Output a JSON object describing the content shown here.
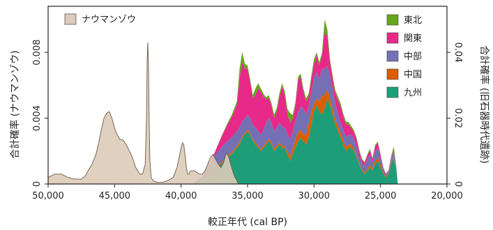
{
  "chart_data": {
    "type": "area",
    "xlabel": "較正年代 (cal BP)",
    "ylabel_left": "合計確率 (ナウマンゾウ)",
    "ylabel_right": "合計確率 (旧石器時代遺跡)",
    "xlim": [
      50000,
      20000
    ],
    "ylim_left": [
      0,
      0.0108
    ],
    "ylim_right": [
      0,
      0.054
    ],
    "x_ticks": [
      50000,
      45000,
      40000,
      35000,
      30000,
      25000,
      20000
    ],
    "x_tick_labels": [
      "50,000",
      "45,000",
      "40,000",
      "35,000",
      "30,000",
      "25,000",
      "20,000"
    ],
    "y_ticks_left": [
      0,
      0.004,
      0.008
    ],
    "y_tick_labels_left": [
      "0",
      "0.004",
      "0.008"
    ],
    "y_ticks_right": [
      0,
      0.02,
      0.04
    ],
    "y_tick_labels_right": [
      "0",
      "0.02",
      "0.04"
    ],
    "legend_left_placement": "top-left",
    "legend_right_placement": "top-right",
    "naumann": {
      "name": "ナウマンゾウ",
      "color": "#dccbb8",
      "x": [
        50000,
        49500,
        49000,
        48500,
        48000,
        47500,
        47200,
        47000,
        46700,
        46400,
        46200,
        46000,
        45800,
        45600,
        45400,
        45200,
        45000,
        44800,
        44600,
        44400,
        44200,
        44000,
        43700,
        43400,
        43100,
        42900,
        42700,
        42600,
        42550,
        42500,
        42450,
        42400,
        42350,
        42250,
        42100,
        41800,
        41400,
        41000,
        40600,
        40300,
        40000,
        39900,
        39800,
        39700,
        39600,
        39500,
        39400,
        39300,
        39200,
        39000,
        38800,
        38600,
        38400,
        38200,
        38000,
        37800,
        37600,
        37400,
        37200,
        37000,
        36800,
        36600,
        36400,
        36200,
        36000,
        35800,
        35700
      ],
      "values": [
        0.0004,
        0.0006,
        0.0006,
        0.0004,
        0.0003,
        0.0003,
        0.0005,
        0.0008,
        0.0012,
        0.0018,
        0.0025,
        0.0033,
        0.004,
        0.0043,
        0.0044,
        0.004,
        0.0034,
        0.003,
        0.0027,
        0.0027,
        0.0025,
        0.0022,
        0.0017,
        0.001,
        0.0006,
        0.0006,
        0.0012,
        0.004,
        0.0075,
        0.0086,
        0.007,
        0.004,
        0.0015,
        0.0004,
        0.0002,
        0.0001,
        0.0001,
        0.0002,
        0.0004,
        0.001,
        0.0022,
        0.0025,
        0.0024,
        0.0018,
        0.001,
        0.0006,
        0.0006,
        0.0008,
        0.0008,
        0.0008,
        0.0007,
        0.0006,
        0.0006,
        0.0008,
        0.0012,
        0.0016,
        0.0018,
        0.0015,
        0.0012,
        0.001,
        0.0013,
        0.0019,
        0.0016,
        0.001,
        0.0005,
        0.0002,
        0
      ]
    },
    "x": [
      39000,
      38500,
      38000,
      37500,
      37000,
      36500,
      36200,
      35800,
      35600,
      35400,
      35200,
      35000,
      34800,
      34600,
      34400,
      34200,
      34000,
      33800,
      33600,
      33400,
      33200,
      33000,
      32800,
      32600,
      32400,
      32200,
      32000,
      31800,
      31600,
      31400,
      31200,
      31000,
      30800,
      30600,
      30400,
      30200,
      30000,
      29800,
      29600,
      29400,
      29200,
      29000,
      28800,
      28600,
      28400,
      28200,
      28000,
      27800,
      27600,
      27400,
      27200,
      27000,
      26800,
      26600,
      26400,
      26200,
      26000,
      25800,
      25600,
      25400,
      25200,
      25000,
      24800,
      24600,
      24400,
      24200,
      24000,
      23800,
      23700
    ],
    "series": [
      {
        "name": "九州",
        "color": "#1e9e78",
        "values": [
          0,
          0.0005,
          0.0018,
          0.004,
          0.006,
          0.008,
          0.009,
          0.011,
          0.012,
          0.014,
          0.015,
          0.016,
          0.015,
          0.013,
          0.012,
          0.011,
          0.01,
          0.011,
          0.012,
          0.013,
          0.012,
          0.01,
          0.011,
          0.012,
          0.011,
          0.011,
          0.009,
          0.007,
          0.009,
          0.011,
          0.013,
          0.014,
          0.013,
          0.012,
          0.014,
          0.018,
          0.022,
          0.024,
          0.022,
          0.021,
          0.023,
          0.026,
          0.024,
          0.021,
          0.018,
          0.016,
          0.014,
          0.012,
          0.01,
          0.011,
          0.011,
          0.01,
          0.008,
          0.006,
          0.004,
          0.003,
          0.004,
          0.005,
          0.004,
          0.006,
          0.007,
          0.005,
          0.003,
          0.002,
          0.003,
          0.006,
          0.008,
          0.004,
          0
        ]
      },
      {
        "name": "中国",
        "color": "#d95f02",
        "values": [
          0,
          0.0001,
          0.0002,
          0.0003,
          0.0005,
          0.0006,
          0.0006,
          0.0006,
          0.0006,
          0.0006,
          0.0005,
          0.0005,
          0.0005,
          0.0005,
          0.0006,
          0.0006,
          0.0005,
          0.0006,
          0.0007,
          0.0007,
          0.0006,
          0.0006,
          0.0006,
          0.0006,
          0.0006,
          0.0006,
          0.0008,
          0.0015,
          0.002,
          0.0025,
          0.0028,
          0.0025,
          0.002,
          0.003,
          0.0045,
          0.004,
          0.0025,
          0.002,
          0.003,
          0.006,
          0.004,
          0.003,
          0.002,
          0.002,
          0.0015,
          0.0015,
          0.0015,
          0.0015,
          0.0012,
          0.001,
          0.001,
          0.0008,
          0.0006,
          0.0005,
          0.0004,
          0.0004,
          0.0006,
          0.0008,
          0.0006,
          0.001,
          0.001,
          0.0008,
          0.0005,
          0.0003,
          0.0003,
          0.0004,
          0.0004,
          0.0002,
          0
        ]
      },
      {
        "name": "中部",
        "color": "#7570b3",
        "values": [
          0.0005,
          0.0015,
          0.003,
          0.004,
          0.0045,
          0.0045,
          0.0045,
          0.0045,
          0.0045,
          0.0045,
          0.0045,
          0.0045,
          0.0045,
          0.0045,
          0.0045,
          0.0045,
          0.0045,
          0.005,
          0.006,
          0.0065,
          0.006,
          0.0055,
          0.0055,
          0.006,
          0.006,
          0.0055,
          0.0055,
          0.005,
          0.005,
          0.0055,
          0.006,
          0.007,
          0.008,
          0.006,
          0.005,
          0.006,
          0.008,
          0.008,
          0.007,
          0.008,
          0.008,
          0.007,
          0.007,
          0.006,
          0.005,
          0.004,
          0.003,
          0.003,
          0.003,
          0.003,
          0.003,
          0.003,
          0.003,
          0.002,
          0.002,
          0.002,
          0.003,
          0.003,
          0.002,
          0.003,
          0.003,
          0.002,
          0.001,
          0.0005,
          0.0005,
          0.001,
          0.0015,
          0.0005,
          0
        ]
      },
      {
        "name": "関東",
        "color": "#e7298a",
        "values": [
          0,
          0,
          0.0005,
          0.001,
          0.003,
          0.005,
          0.006,
          0.008,
          0.015,
          0.018,
          0.015,
          0.014,
          0.011,
          0.008,
          0.01,
          0.013,
          0.013,
          0.01,
          0.007,
          0.006,
          0.005,
          0.004,
          0.005,
          0.008,
          0.012,
          0.01,
          0.006,
          0.005,
          0.004,
          0.005,
          0.01,
          0.009,
          0.005,
          0.004,
          0.003,
          0.004,
          0.004,
          0.005,
          0.004,
          0.004,
          0.011,
          0.009,
          0.004,
          0.003,
          0.003,
          0.004,
          0.005,
          0.004,
          0.004,
          0.003,
          0.002,
          0.002,
          0.002,
          0.0015,
          0.001,
          0.001,
          0.001,
          0.0015,
          0.001,
          0.0015,
          0.0015,
          0.001,
          0.0005,
          0.0003,
          0.0003,
          0.0005,
          0.0005,
          0.0002,
          0
        ]
      },
      {
        "name": "東北",
        "color": "#66a61e",
        "values": [
          0,
          0,
          0,
          0,
          0.0002,
          0.0005,
          0.0008,
          0.001,
          0.003,
          0.003,
          0.0015,
          0.001,
          0.0008,
          0.001,
          0.002,
          0.0015,
          0.001,
          0.0008,
          0.0006,
          0.0008,
          0.001,
          0.001,
          0.001,
          0.001,
          0.001,
          0.001,
          0.0015,
          0.003,
          0.001,
          0.0008,
          0.0008,
          0.001,
          0.001,
          0.001,
          0.001,
          0.001,
          0.0015,
          0.001,
          0.001,
          0.001,
          0.004,
          0.002,
          0.001,
          0.001,
          0.001,
          0.001,
          0.001,
          0.0008,
          0.0008,
          0.0008,
          0.0006,
          0.0006,
          0.0005,
          0.0004,
          0.0003,
          0.0003,
          0.0003,
          0.0004,
          0.0003,
          0.0004,
          0.0004,
          0.0003,
          0.0002,
          0.0001,
          0.0001,
          0.0005,
          0.001,
          0.0003,
          0
        ]
      }
    ]
  }
}
